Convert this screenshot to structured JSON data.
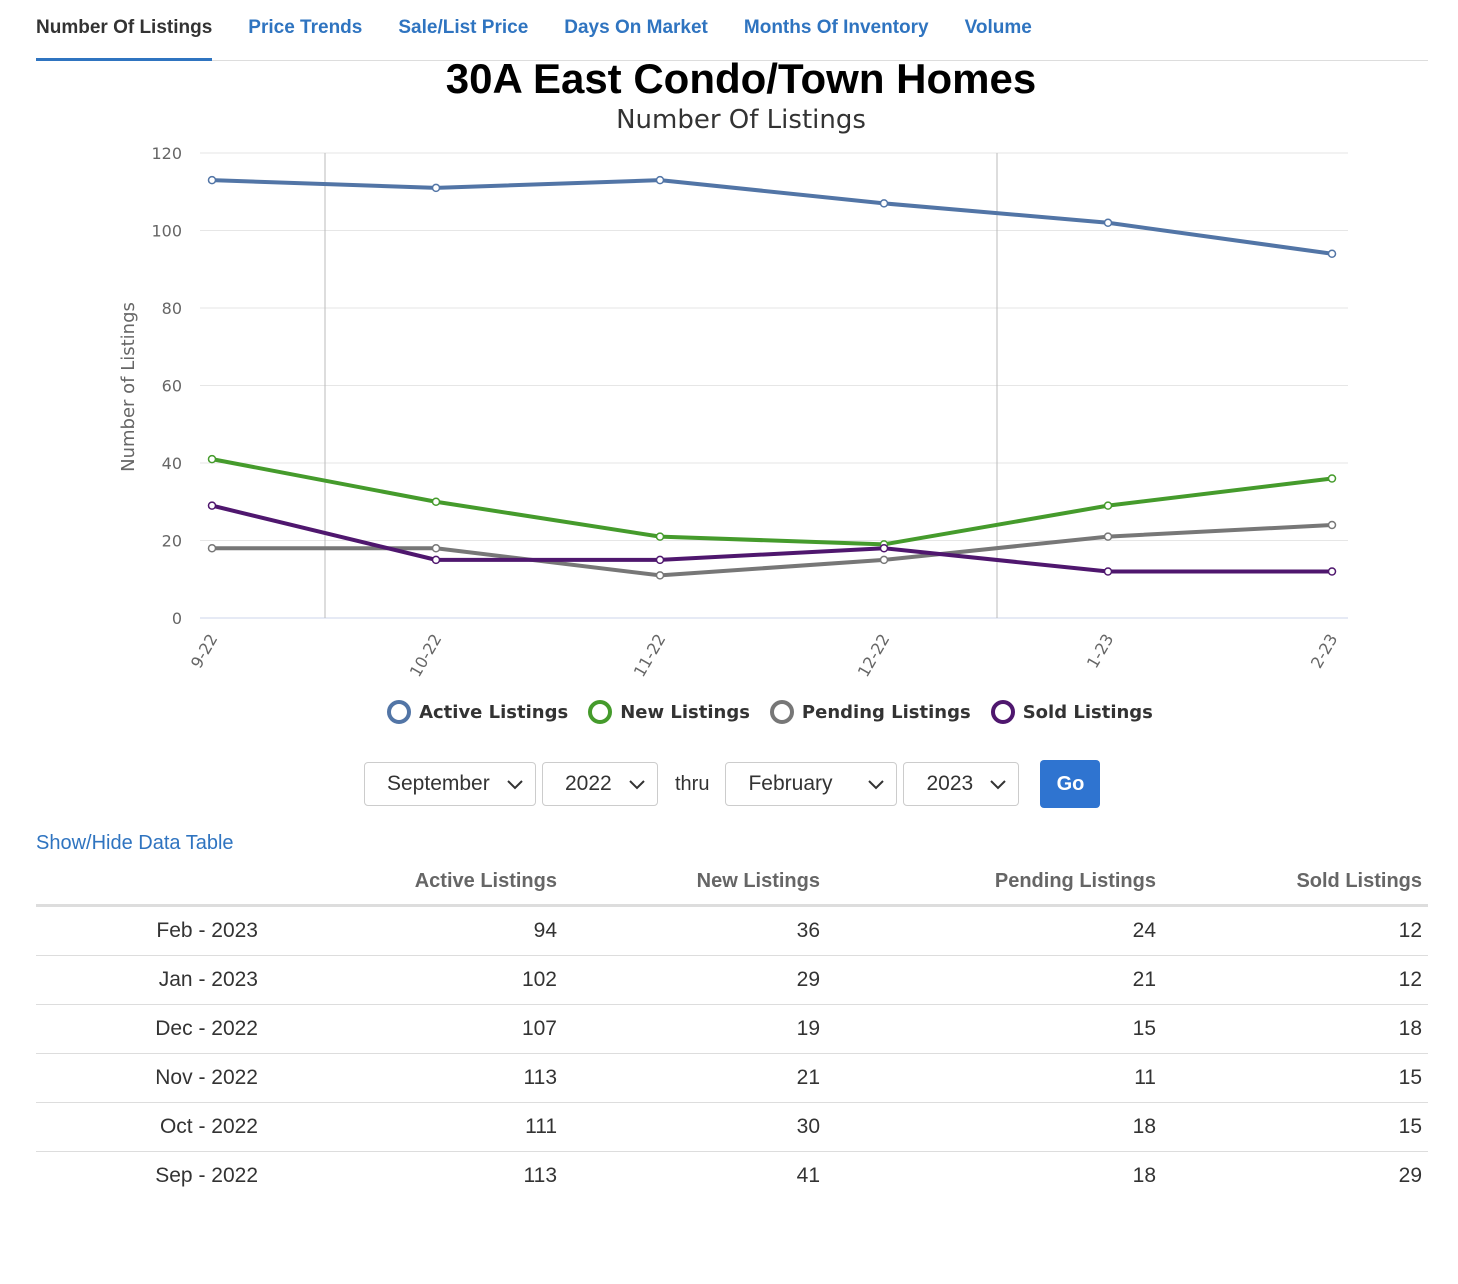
{
  "tabs": [
    {
      "label": "Number Of Listings",
      "active": true
    },
    {
      "label": "Price Trends",
      "active": false
    },
    {
      "label": "Sale/List Price",
      "active": false
    },
    {
      "label": "Days On Market",
      "active": false
    },
    {
      "label": "Months Of Inventory",
      "active": false
    },
    {
      "label": "Volume",
      "active": false
    }
  ],
  "page": {
    "title": "30A East Condo/Town Homes",
    "subtitle": "Number Of Listings"
  },
  "chart_data": {
    "type": "line",
    "title": "Number Of Listings",
    "ylabel": "Number of Listings",
    "xlabel": "",
    "categories": [
      "9-22",
      "10-22",
      "11-22",
      "12-22",
      "1-23",
      "2-23"
    ],
    "ylim": [
      0,
      120
    ],
    "yticks": [
      0,
      20,
      40,
      60,
      80,
      100,
      120
    ],
    "grid": true,
    "legend": "bottom",
    "series": [
      {
        "name": "Active Listings",
        "color": "#5275a6",
        "values": [
          113,
          111,
          113,
          107,
          102,
          94
        ]
      },
      {
        "name": "New Listings",
        "color": "#459b2c",
        "values": [
          41,
          30,
          21,
          19,
          29,
          36
        ]
      },
      {
        "name": "Pending Listings",
        "color": "#777777",
        "values": [
          18,
          18,
          11,
          15,
          21,
          24
        ]
      },
      {
        "name": "Sold Listings",
        "color": "#4f176e",
        "values": [
          29,
          15,
          15,
          18,
          12,
          12
        ]
      }
    ]
  },
  "controls": {
    "from_month": "September",
    "from_year": "2022",
    "thru_label": "thru",
    "to_month": "February",
    "to_year": "2023",
    "go_label": "Go"
  },
  "table": {
    "toggle_label": "Show/Hide Data Table",
    "headers": [
      "",
      "Active Listings",
      "New Listings",
      "Pending Listings",
      "Sold Listings"
    ],
    "rows": [
      [
        "Feb - 2023",
        "94",
        "36",
        "24",
        "12"
      ],
      [
        "Jan - 2023",
        "102",
        "29",
        "21",
        "12"
      ],
      [
        "Dec - 2022",
        "107",
        "19",
        "15",
        "18"
      ],
      [
        "Nov - 2022",
        "113",
        "21",
        "11",
        "15"
      ],
      [
        "Oct - 2022",
        "111",
        "30",
        "18",
        "15"
      ],
      [
        "Sep - 2022",
        "113",
        "41",
        "18",
        "29"
      ]
    ]
  }
}
